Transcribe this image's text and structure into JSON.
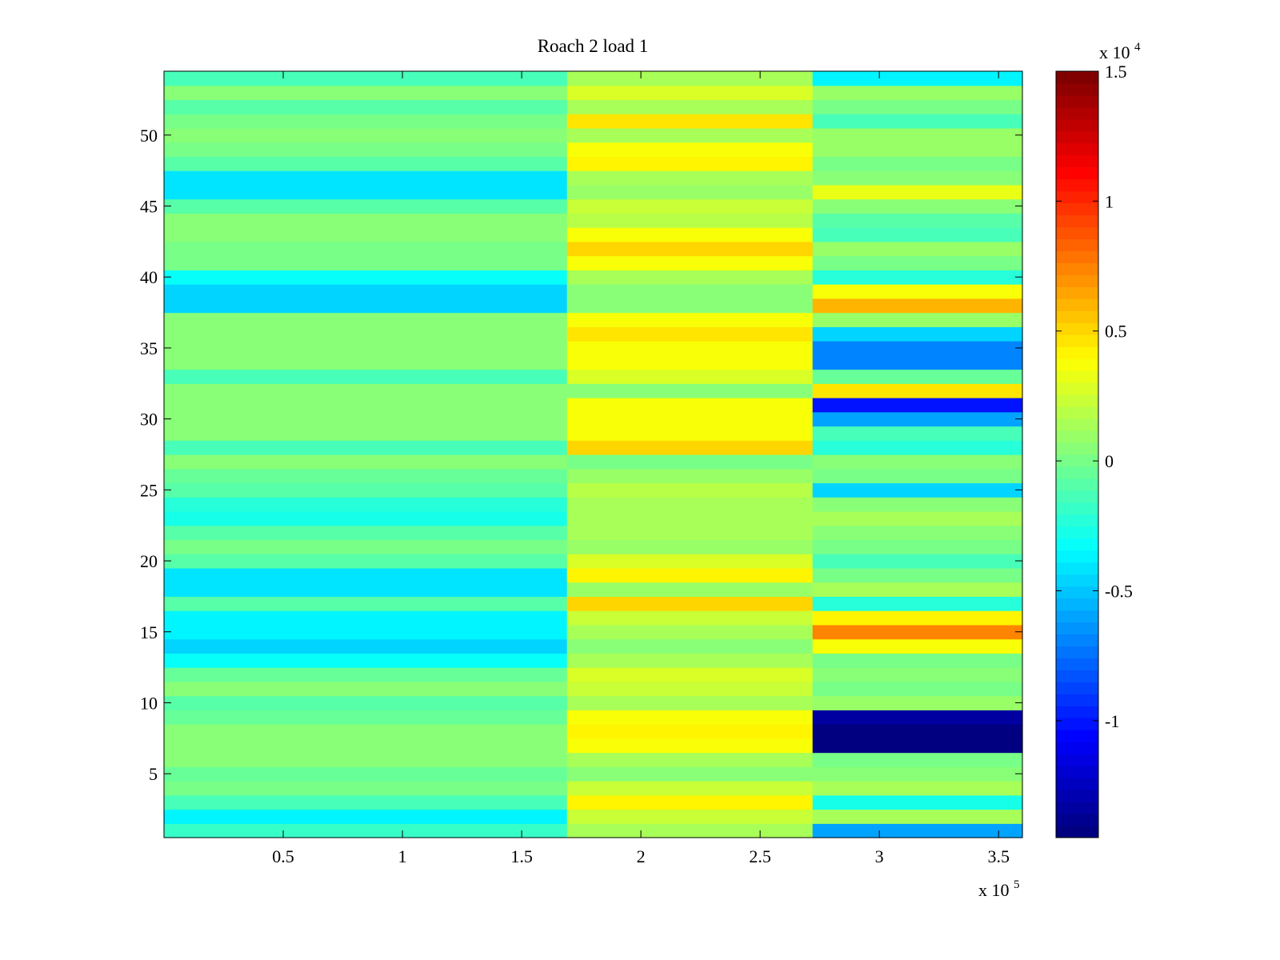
{
  "chart_data": {
    "type": "heatmap",
    "title": "Roach 2 load 1",
    "xlabel": "",
    "ylabel": "",
    "x_multiplier": {
      "base": "x 10",
      "exponent": "5"
    },
    "xlim": [
      0,
      3.6
    ],
    "ylim": [
      0.5,
      54.5
    ],
    "x_ticks": [
      0.5,
      1,
      1.5,
      2,
      2.5,
      3,
      3.5
    ],
    "x_tick_labels": [
      "0.5",
      "1",
      "1.5",
      "2",
      "2.5",
      "3",
      "3.5"
    ],
    "y_ticks": [
      5,
      10,
      15,
      20,
      25,
      30,
      35,
      40,
      45,
      50
    ],
    "y_tick_labels": [
      "5",
      "10",
      "15",
      "20",
      "25",
      "30",
      "35",
      "40",
      "45",
      "50"
    ],
    "rows": 54,
    "segments": [
      {
        "name": "segment-1",
        "x_range": [
          0,
          1.69
        ]
      },
      {
        "name": "segment-2",
        "x_range": [
          1.69,
          2.72
        ]
      },
      {
        "name": "segment-3",
        "x_range": [
          2.72,
          3.6
        ]
      }
    ],
    "segment_row_values": [
      [
        -2000,
        -3500,
        -1500,
        200,
        -500,
        300,
        500,
        300,
        -300,
        -1000,
        300,
        -600,
        -3300,
        -4500,
        -3800,
        -3500,
        -900,
        -4300,
        -4300,
        -1000,
        0,
        -800,
        -2600,
        -2200,
        -800,
        -400,
        400,
        -1300,
        500,
        500,
        400,
        600,
        -1200,
        700,
        700,
        300,
        400,
        -4400,
        -4800,
        -3100,
        0,
        200,
        700,
        400,
        -1000,
        -3900,
        -4100,
        -700,
        200,
        300,
        200,
        -1000,
        500,
        -1200
      ],
      [
        1500,
        2500,
        4000,
        2500,
        500,
        1500,
        3500,
        4000,
        3500,
        1500,
        2500,
        3000,
        1500,
        500,
        1500,
        2500,
        5000,
        1000,
        4000,
        3000,
        1000,
        1500,
        1500,
        1500,
        2000,
        1000,
        0,
        5000,
        3500,
        3500,
        3500,
        500,
        3000,
        3500,
        3500,
        4500,
        3500,
        500,
        500,
        1500,
        3500,
        5000,
        3500,
        2000,
        2500,
        1000,
        1500,
        4000,
        3500,
        1500,
        4500,
        1500,
        3000,
        1500
      ],
      [
        -5800,
        1500,
        -2800,
        1500,
        500,
        100,
        -14500,
        -14500,
        -13200,
        1000,
        200,
        700,
        200,
        3500,
        7500,
        4300,
        -2200,
        1500,
        200,
        -1200,
        100,
        700,
        1500,
        300,
        -4800,
        100,
        500,
        -2200,
        -1200,
        -6200,
        -10200,
        4800,
        -600,
        -7000,
        -7000,
        -4600,
        800,
        5800,
        3500,
        -2200,
        200,
        1000,
        -1500,
        -800,
        500,
        3200,
        400,
        200,
        800,
        900,
        -1500,
        -200,
        900,
        -3800
      ]
    ],
    "colorbar": {
      "colormap": "jet",
      "range": [
        -14500,
        15000
      ],
      "multiplier": {
        "base": "x 10",
        "exponent": "4"
      },
      "ticks": [
        -1,
        -0.5,
        0,
        0.5,
        1,
        1.5
      ],
      "tick_labels": [
        "-1",
        "-0.5",
        "0",
        "0.5",
        "1",
        "1.5"
      ]
    },
    "colors": {
      "axis": "#000000",
      "background": "#ffffff"
    }
  }
}
